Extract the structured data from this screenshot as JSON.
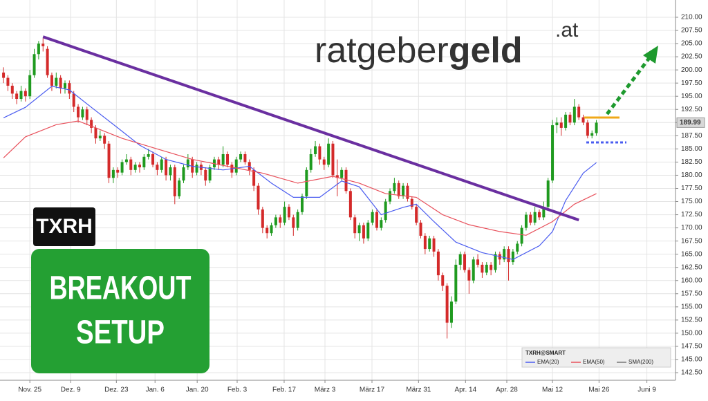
{
  "brand": {
    "name": "ratgeber",
    "bold": "geld",
    "suffix": ".at"
  },
  "ticker_badge": "TXRH",
  "setup_badge": [
    "BREAKOUT",
    "SETUP"
  ],
  "chart_data": {
    "type": "candlestick",
    "up_color": "#1f9a1f",
    "down_color": "#d42a2a",
    "xlim": [
      -0.8,
      152.7
    ],
    "ylim": [
      141.06,
      213.28
    ],
    "grid": true,
    "xticks": [
      {
        "value": 6,
        "label": "Nov. 25"
      },
      {
        "value": 15.3,
        "label": "Dez. 9"
      },
      {
        "value": 25.7,
        "label": "Dez. 23"
      },
      {
        "value": 34.5,
        "label": "Jan. 6"
      },
      {
        "value": 44.1,
        "label": "Jan. 20"
      },
      {
        "value": 53.2,
        "label": "Feb. 3"
      },
      {
        "value": 63.9,
        "label": "Feb. 17"
      },
      {
        "value": 73.2,
        "label": "März 3"
      },
      {
        "value": 83.9,
        "label": "März 17"
      },
      {
        "value": 94.5,
        "label": "März 31"
      },
      {
        "value": 105.2,
        "label": "Apr. 14"
      },
      {
        "value": 114.6,
        "label": "Apr. 28"
      },
      {
        "value": 125,
        "label": "Mai 12"
      },
      {
        "value": 135.6,
        "label": "Mai 26"
      },
      {
        "value": 146.5,
        "label": "Juni 9"
      }
    ],
    "yticks": [
      {
        "value": 210,
        "label": "210.00"
      },
      {
        "value": 207.5,
        "label": "207.50"
      },
      {
        "value": 205,
        "label": "205.00"
      },
      {
        "value": 202.5,
        "label": "202.50"
      },
      {
        "value": 200,
        "label": "200.00"
      },
      {
        "value": 197.5,
        "label": "197.50"
      },
      {
        "value": 195,
        "label": "195.00"
      },
      {
        "value": 192.5,
        "label": "192.50"
      },
      {
        "value": 190,
        "label": "190.00"
      },
      {
        "value": 187.5,
        "label": "187.50"
      },
      {
        "value": 185,
        "label": "185.00"
      },
      {
        "value": 182.5,
        "label": "182.50"
      },
      {
        "value": 180,
        "label": "180.00"
      },
      {
        "value": 177.5,
        "label": "177.50"
      },
      {
        "value": 175,
        "label": "175.00"
      },
      {
        "value": 172.5,
        "label": "172.50"
      },
      {
        "value": 170,
        "label": "170.00"
      },
      {
        "value": 167.5,
        "label": "167.50"
      },
      {
        "value": 165,
        "label": "165.00"
      },
      {
        "value": 162.5,
        "label": "162.50"
      },
      {
        "value": 160,
        "label": "160.00"
      },
      {
        "value": 157.5,
        "label": "157.50"
      },
      {
        "value": 155,
        "label": "155.00"
      },
      {
        "value": 152.5,
        "label": "152.50"
      },
      {
        "value": 150,
        "label": "150.00"
      },
      {
        "value": 147.5,
        "label": "147.50"
      },
      {
        "value": 145,
        "label": "145.00"
      },
      {
        "value": 142.5,
        "label": "142.50"
      }
    ],
    "legend_title": "TXRH@SMART",
    "candles": [
      [
        199.5,
        200.5,
        197.5,
        198.5
      ],
      [
        198.5,
        199,
        196,
        197
      ],
      [
        197,
        197.5,
        194.5,
        195.5
      ],
      [
        195.5,
        196,
        193.5,
        194.5
      ],
      [
        194.5,
        197,
        194,
        196
      ],
      [
        196,
        196.5,
        194,
        195
      ],
      [
        195,
        200,
        194.5,
        199
      ],
      [
        199,
        204,
        198.5,
        203
      ],
      [
        203,
        205.5,
        202,
        205
      ],
      [
        205,
        206,
        203.5,
        204.5
      ],
      [
        204,
        204.5,
        198.5,
        199
      ],
      [
        199,
        199.5,
        196,
        197
      ],
      [
        197,
        199.5,
        196.5,
        198.5
      ],
      [
        198.5,
        199,
        195.5,
        196.5
      ],
      [
        196.5,
        198,
        195.5,
        197.5
      ],
      [
        197.5,
        198,
        194.5,
        195.5
      ],
      [
        195.5,
        196,
        192,
        193
      ],
      [
        193,
        193.5,
        190,
        191
      ],
      [
        191,
        193,
        190.5,
        192.5
      ],
      [
        192.5,
        193,
        189.5,
        190.5
      ],
      [
        190.5,
        191,
        188,
        189
      ],
      [
        189,
        189.5,
        186,
        187
      ],
      [
        187,
        188.5,
        186.5,
        187.5
      ],
      [
        187.5,
        188,
        185,
        186
      ],
      [
        186,
        186.5,
        178.5,
        179.5
      ],
      [
        179.5,
        181.5,
        178.5,
        181
      ],
      [
        181,
        181.5,
        179.5,
        180.5
      ],
      [
        180.5,
        183,
        180,
        182.5
      ],
      [
        182.5,
        184,
        182,
        183
      ],
      [
        183,
        183.5,
        180,
        181
      ],
      [
        181,
        182.5,
        180.5,
        182
      ],
      [
        182,
        182.5,
        180.5,
        181.5
      ],
      [
        181.5,
        184,
        181,
        183.5
      ],
      [
        183.5,
        185,
        183,
        184
      ],
      [
        184,
        184.5,
        181.5,
        182
      ],
      [
        182,
        182.5,
        180,
        181
      ],
      [
        181,
        183.5,
        180.5,
        183
      ],
      [
        183,
        183.5,
        179,
        180
      ],
      [
        180,
        182,
        179,
        181.5
      ],
      [
        181.5,
        182,
        174.5,
        176
      ],
      [
        176,
        179.5,
        175.5,
        179
      ],
      [
        179,
        182,
        178.5,
        181.5
      ],
      [
        181.5,
        184,
        181,
        183
      ],
      [
        183,
        183.5,
        179.5,
        180.5
      ],
      [
        180.5,
        182.5,
        180,
        182
      ],
      [
        182,
        182.5,
        180,
        181
      ],
      [
        181,
        181.5,
        178,
        179
      ],
      [
        179,
        182,
        178.5,
        181.5
      ],
      [
        181.5,
        183.5,
        181,
        183
      ],
      [
        183,
        183.5,
        181,
        182
      ],
      [
        182,
        185.5,
        181.5,
        184
      ],
      [
        184,
        184.5,
        181.5,
        182
      ],
      [
        182,
        182.5,
        179.5,
        180.5
      ],
      [
        180.5,
        183.5,
        180,
        183
      ],
      [
        183,
        184.5,
        182.5,
        184
      ],
      [
        184,
        184.5,
        182,
        182.5
      ],
      [
        182.5,
        183,
        180,
        181
      ],
      [
        181,
        181.5,
        177,
        178
      ],
      [
        178,
        178.5,
        172.5,
        173.5
      ],
      [
        173.5,
        174,
        169,
        170
      ],
      [
        170,
        170.5,
        168,
        169
      ],
      [
        169,
        171,
        168.5,
        170.5
      ],
      [
        170.5,
        172.5,
        170,
        172
      ],
      [
        172,
        172.5,
        170,
        171
      ],
      [
        171,
        175,
        170.5,
        174
      ],
      [
        174,
        174.5,
        171.5,
        172
      ],
      [
        172,
        172.5,
        168.5,
        170
      ],
      [
        170,
        173.5,
        169.5,
        173
      ],
      [
        173,
        176.5,
        172.5,
        176
      ],
      [
        176,
        181.5,
        175.5,
        181
      ],
      [
        181,
        185,
        180.5,
        184
      ],
      [
        184,
        186.5,
        183.5,
        185.5
      ],
      [
        185.5,
        186,
        182,
        183
      ],
      [
        183,
        183.5,
        181,
        182
      ],
      [
        182,
        187,
        181.5,
        186
      ],
      [
        186,
        186.5,
        179.5,
        180
      ],
      [
        180,
        183,
        176,
        179.5
      ],
      [
        179.5,
        181.5,
        179,
        181
      ],
      [
        181,
        181.5,
        176.5,
        177
      ],
      [
        177,
        177.5,
        171.5,
        172
      ],
      [
        172,
        172.5,
        168,
        169
      ],
      [
        169,
        171,
        167.5,
        170.5
      ],
      [
        170.5,
        171,
        167,
        168
      ],
      [
        168,
        171.5,
        167.5,
        171
      ],
      [
        171,
        173.5,
        170.5,
        173
      ],
      [
        173,
        173.5,
        169.5,
        170
      ],
      [
        170,
        172,
        169.5,
        171.5
      ],
      [
        171.5,
        175.5,
        171,
        175
      ],
      [
        175,
        177.5,
        174.5,
        177
      ],
      [
        177,
        179.5,
        176.5,
        178.5
      ],
      [
        178.5,
        179,
        175.5,
        176
      ],
      [
        176,
        178.5,
        175.5,
        178
      ],
      [
        178,
        178.5,
        175,
        175.5
      ],
      [
        175.5,
        176,
        173.5,
        174
      ],
      [
        174,
        174.5,
        170.5,
        171
      ],
      [
        171,
        171.5,
        168,
        168.5
      ],
      [
        168.5,
        169,
        165,
        166
      ],
      [
        166,
        168.5,
        165.5,
        168
      ],
      [
        168,
        168.5,
        164.5,
        165.5
      ],
      [
        165.5,
        166,
        160,
        161
      ],
      [
        161,
        161.5,
        158,
        159
      ],
      [
        159,
        159.5,
        149,
        152
      ],
      [
        152,
        157,
        151,
        156
      ],
      [
        156,
        164,
        155.5,
        163
      ],
      [
        163,
        165.5,
        162,
        165
      ],
      [
        165,
        165.5,
        161.5,
        162
      ],
      [
        162,
        162.5,
        157.5,
        160
      ],
      [
        160,
        164.5,
        159.5,
        164
      ],
      [
        164,
        165,
        162.5,
        163
      ],
      [
        163,
        163.5,
        160.5,
        161.5
      ],
      [
        161.5,
        163.5,
        161,
        163
      ],
      [
        163,
        163.5,
        161,
        162
      ],
      [
        162,
        165.5,
        161.5,
        165
      ],
      [
        165,
        165.5,
        163,
        164
      ],
      [
        164,
        166.5,
        163.5,
        166
      ],
      [
        166,
        166.5,
        160,
        163.5
      ],
      [
        163.5,
        166,
        163,
        165.5
      ],
      [
        165.5,
        167.5,
        165,
        167
      ],
      [
        167,
        170.5,
        166.5,
        170
      ],
      [
        170,
        173,
        169.5,
        172.5
      ],
      [
        172.5,
        173,
        170.5,
        171
      ],
      [
        171,
        174,
        170.5,
        173
      ],
      [
        173,
        173.5,
        171.5,
        172
      ],
      [
        172,
        175,
        171.5,
        174
      ],
      [
        174,
        179.5,
        173.5,
        179
      ],
      [
        179,
        190.5,
        178.5,
        189.5
      ],
      [
        189.5,
        191,
        188,
        190
      ],
      [
        190,
        191,
        187.5,
        189
      ],
      [
        189,
        192,
        188.5,
        191.5
      ],
      [
        191.5,
        192,
        189.5,
        190
      ],
      [
        190,
        194.5,
        189.5,
        193
      ],
      [
        193,
        193.5,
        190.5,
        191
      ],
      [
        191,
        191.5,
        189.5,
        190
      ],
      [
        190,
        190.5,
        187,
        187.5
      ],
      [
        187.5,
        188.5,
        187,
        188
      ],
      [
        188,
        190.5,
        187.5,
        189.99
      ]
    ],
    "series": [
      {
        "name": "EMA(20)",
        "color": "#4a5cf0",
        "x": [
          0,
          5,
          11,
          15,
          20,
          26,
          31,
          37,
          43,
          50,
          56,
          61,
          66,
          72,
          77,
          81,
          86,
          91,
          94,
          98,
          103,
          109,
          116,
          122,
          125,
          128,
          132,
          135
        ],
        "values": [
          190.9,
          192.9,
          196.9,
          196.2,
          192.9,
          189,
          185.7,
          183,
          181.7,
          181,
          181.7,
          178.5,
          175.8,
          175.8,
          178.9,
          177.8,
          172.5,
          173.9,
          174.5,
          171.2,
          167.3,
          165.3,
          164,
          166.6,
          169.3,
          175.2,
          180.4,
          182.4
        ]
      },
      {
        "name": "EMA(50)",
        "color": "#e8505b",
        "x": [
          0,
          5,
          12,
          17,
          21,
          27,
          35,
          43,
          51,
          59,
          67,
          75,
          81,
          87,
          94,
          100,
          106,
          113,
          119,
          125,
          130,
          135
        ],
        "values": [
          183.3,
          187.3,
          189.6,
          190.3,
          189,
          187,
          185,
          183,
          181.7,
          180.4,
          178.5,
          179.8,
          178.5,
          176.5,
          175.8,
          172.5,
          170.6,
          169.3,
          168.6,
          171.2,
          174.5,
          176.5
        ]
      },
      {
        "name": "SMA(200)",
        "color": "#777777",
        "x": [],
        "values": []
      }
    ],
    "trendline": {
      "color": "#6a2fa0",
      "x": [
        9,
        131
      ],
      "values": [
        206.3,
        171.5
      ]
    }
  }
}
